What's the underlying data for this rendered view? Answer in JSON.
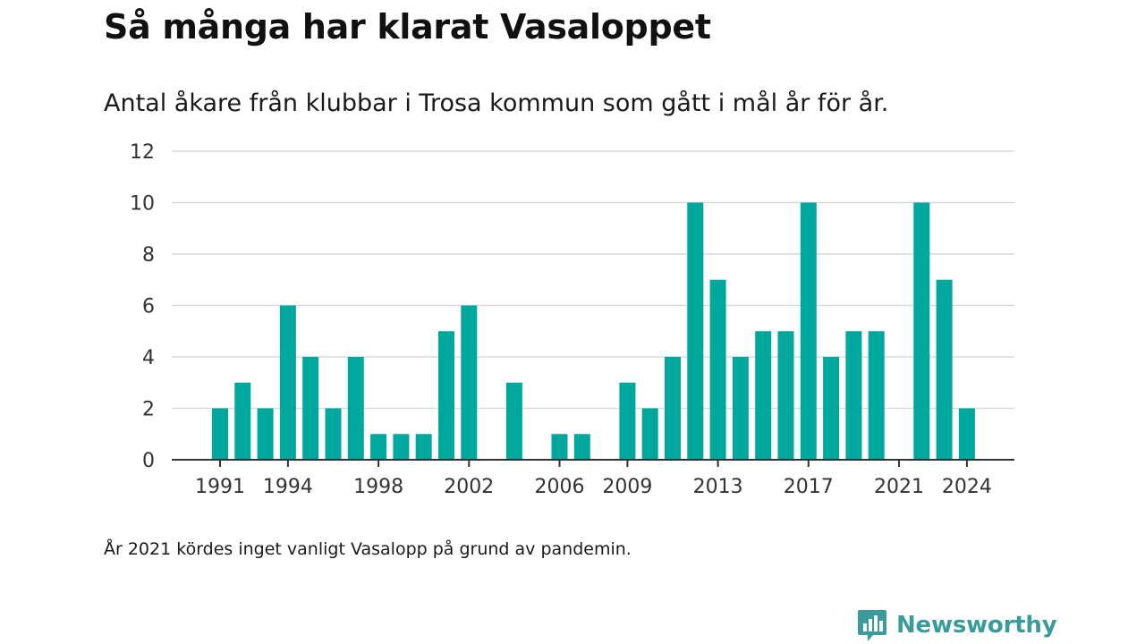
{
  "header": {
    "title": "Så många har klarat Vasaloppet",
    "subtitle": "Antal åkare från klubbar i Trosa kommun som gått i mål år för år."
  },
  "footer": {
    "note": "År 2021 kördes inget vanligt Vasalopp på grund av pandemin.",
    "brand": "Newsworthy",
    "brand_icon": "newsworthy-logo-icon"
  },
  "colors": {
    "bar": "#00a79d",
    "grid": "#d9d9d9",
    "axis": "#333333",
    "brand": "#3a9c9a"
  },
  "chart_data": {
    "type": "bar",
    "title": "Så många har klarat Vasaloppet",
    "subtitle": "Antal åkare från klubbar i Trosa kommun som gått i mål år för år.",
    "xlabel": "",
    "ylabel": "",
    "categories": [
      1991,
      1992,
      1993,
      1994,
      1995,
      1996,
      1997,
      1998,
      1999,
      2000,
      2001,
      2002,
      2003,
      2004,
      2005,
      2006,
      2007,
      2008,
      2009,
      2010,
      2011,
      2012,
      2013,
      2014,
      2015,
      2016,
      2017,
      2018,
      2019,
      2020,
      2021,
      2022,
      2023,
      2024
    ],
    "values": [
      2,
      3,
      2,
      6,
      4,
      2,
      4,
      1,
      1,
      1,
      5,
      6,
      0,
      3,
      0,
      1,
      1,
      0,
      3,
      2,
      4,
      10,
      7,
      4,
      5,
      5,
      10,
      4,
      5,
      5,
      0,
      10,
      7,
      2
    ],
    "x_tick_labels": [
      "1991",
      "1994",
      "1998",
      "2002",
      "2006",
      "2009",
      "2013",
      "2017",
      "2021",
      "2024"
    ],
    "y_ticks": [
      0,
      2,
      4,
      6,
      8,
      10,
      12
    ],
    "ylim": [
      0,
      12
    ],
    "grid": true,
    "legend": "none"
  }
}
